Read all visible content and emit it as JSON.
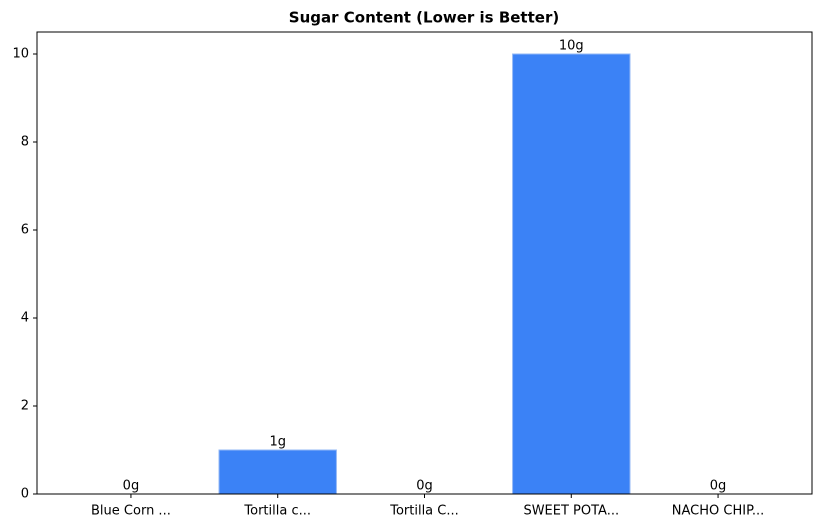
{
  "chart_data": {
    "type": "bar",
    "title": "Sugar Content (Lower is Better)",
    "categories": [
      "Blue Corn ...",
      "Tortilla c...",
      "Tortilla C...",
      "SWEET POTA...",
      "NACHO CHIP..."
    ],
    "values": [
      0,
      1,
      0,
      10,
      0
    ],
    "value_labels": [
      "0g",
      "1g",
      "0g",
      "10g",
      "0g"
    ],
    "color": "#3b82f6",
    "ylim": [
      0,
      10.5
    ],
    "yticks": [
      0,
      2,
      4,
      6,
      8,
      10
    ],
    "grid": false
  }
}
